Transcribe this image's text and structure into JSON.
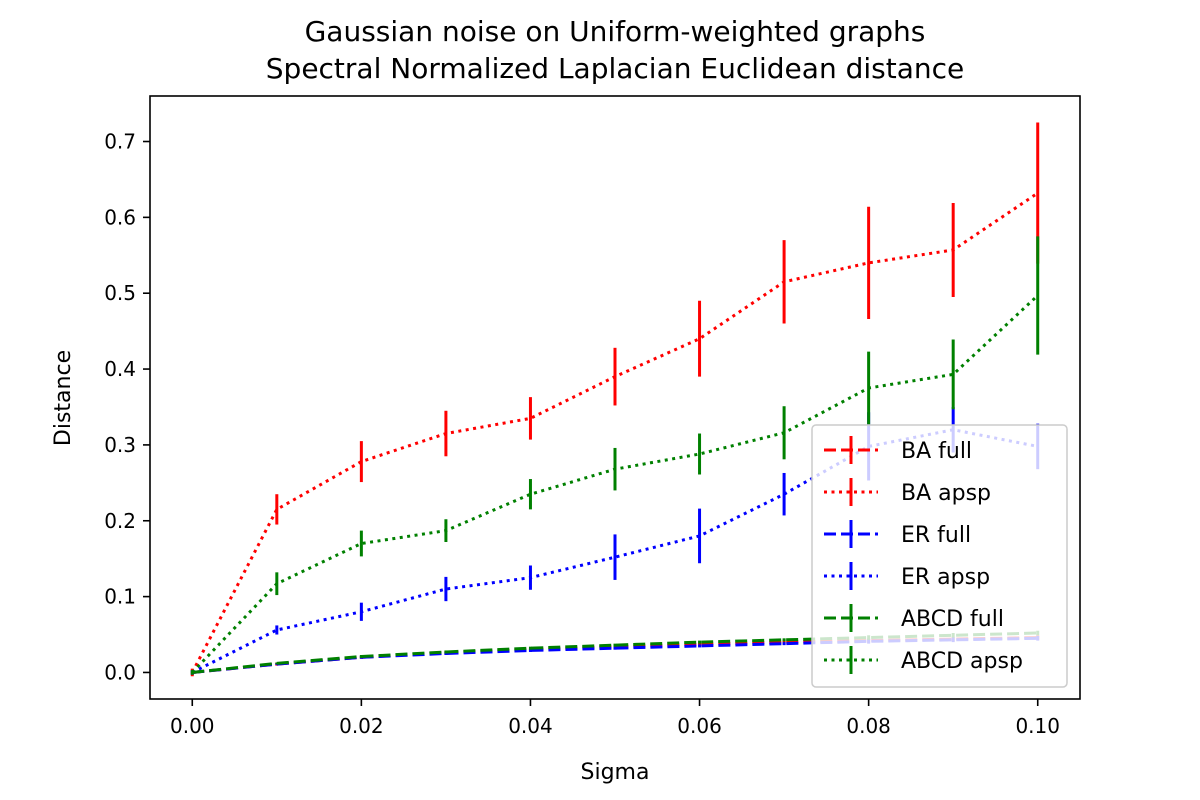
{
  "chart_data": {
    "type": "line",
    "title": "Gaussian noise on Uniform-weighted graphs",
    "subtitle": "Spectral Normalized Laplacian Euclidean distance",
    "xlabel": "Sigma",
    "ylabel": "Distance",
    "xlim": [
      -0.005,
      0.105
    ],
    "ylim": [
      -0.035,
      0.76
    ],
    "x_ticks": [
      "0.00",
      "0.02",
      "0.04",
      "0.06",
      "0.08",
      "0.10"
    ],
    "y_ticks": [
      "0.0",
      "0.1",
      "0.2",
      "0.3",
      "0.4",
      "0.5",
      "0.6",
      "0.7"
    ],
    "grid": false,
    "legend_position": "lower-right",
    "x": [
      0.0,
      0.01,
      0.02,
      0.03,
      0.04,
      0.05,
      0.06,
      0.07,
      0.08,
      0.09,
      0.1
    ],
    "series": [
      {
        "name": "BA full",
        "color": "#ff0000",
        "style": "dashed",
        "values": [
          0.0,
          0.011,
          0.02,
          0.026,
          0.03,
          0.034,
          0.037,
          0.04,
          0.042,
          0.044,
          0.046
        ],
        "errors": [
          0.0,
          0.002,
          0.002,
          0.002,
          0.002,
          0.002,
          0.002,
          0.003,
          0.003,
          0.003,
          0.003
        ]
      },
      {
        "name": "BA apsp",
        "color": "#ff0000",
        "style": "dotted",
        "values": [
          0.0,
          0.215,
          0.278,
          0.315,
          0.335,
          0.39,
          0.44,
          0.515,
          0.54,
          0.557,
          0.632
        ],
        "errors": [
          0.005,
          0.02,
          0.027,
          0.03,
          0.028,
          0.038,
          0.05,
          0.055,
          0.074,
          0.062,
          0.093
        ]
      },
      {
        "name": "ER full",
        "color": "#0000ff",
        "style": "dashed",
        "values": [
          0.0,
          0.011,
          0.02,
          0.025,
          0.029,
          0.032,
          0.035,
          0.038,
          0.041,
          0.043,
          0.045
        ],
        "errors": [
          0.0,
          0.001,
          0.002,
          0.002,
          0.002,
          0.002,
          0.002,
          0.002,
          0.003,
          0.003,
          0.003
        ]
      },
      {
        "name": "ER apsp",
        "color": "#0000ff",
        "style": "dotted",
        "values": [
          0.0,
          0.056,
          0.08,
          0.11,
          0.125,
          0.152,
          0.18,
          0.235,
          0.298,
          0.32,
          0.298
        ],
        "errors": [
          0.003,
          0.006,
          0.012,
          0.016,
          0.016,
          0.03,
          0.036,
          0.028,
          0.045,
          0.03,
          0.03
        ]
      },
      {
        "name": "ABCD full",
        "color": "#008000",
        "style": "dashed",
        "values": [
          0.0,
          0.012,
          0.021,
          0.027,
          0.032,
          0.036,
          0.04,
          0.043,
          0.046,
          0.049,
          0.052
        ],
        "errors": [
          0.0,
          0.001,
          0.002,
          0.002,
          0.002,
          0.002,
          0.002,
          0.002,
          0.003,
          0.003,
          0.003
        ]
      },
      {
        "name": "ABCD apsp",
        "color": "#008000",
        "style": "dotted",
        "values": [
          0.0,
          0.117,
          0.17,
          0.187,
          0.235,
          0.268,
          0.288,
          0.316,
          0.375,
          0.393,
          0.497
        ],
        "errors": [
          0.003,
          0.015,
          0.017,
          0.015,
          0.02,
          0.028,
          0.027,
          0.035,
          0.048,
          0.046,
          0.078
        ]
      }
    ]
  }
}
